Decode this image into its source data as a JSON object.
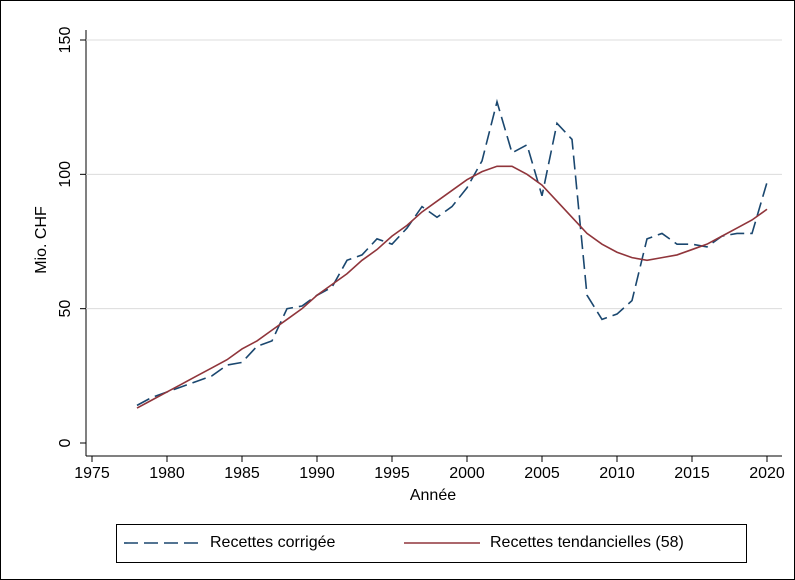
{
  "chart_data": {
    "type": "line",
    "x_label": "Année",
    "y_label": "Mio. CHF",
    "x": [
      1978,
      1979,
      1980,
      1981,
      1982,
      1983,
      1984,
      1985,
      1986,
      1987,
      1988,
      1989,
      1990,
      1991,
      1992,
      1993,
      1994,
      1995,
      1996,
      1997,
      1998,
      1999,
      2000,
      2001,
      2002,
      2003,
      2004,
      2005,
      2006,
      2007,
      2008,
      2009,
      2010,
      2011,
      2012,
      2013,
      2014,
      2015,
      2016,
      2017,
      2018,
      2019,
      2020
    ],
    "series": [
      {
        "name": "Recettes corrigée",
        "color": "#1a476f",
        "dashed": true,
        "values": [
          14,
          17,
          19,
          21,
          23,
          25,
          29,
          30,
          36,
          38,
          50,
          51,
          55,
          58,
          68,
          70,
          76,
          74,
          80,
          88,
          84,
          88,
          95,
          105,
          127,
          108,
          111,
          92,
          119,
          113,
          55,
          46,
          48,
          53,
          76,
          78,
          74,
          74,
          73,
          77,
          78,
          78,
          97
        ]
      },
      {
        "name": "Recettes tendancielles (58)",
        "color": "#90353b",
        "dashed": false,
        "values": [
          13,
          16,
          19,
          22,
          25,
          28,
          31,
          35,
          38,
          42,
          46,
          50,
          55,
          59,
          63,
          68,
          72,
          77,
          81,
          86,
          90,
          94,
          98,
          101,
          103,
          103,
          100,
          96,
          90,
          84,
          78,
          74,
          71,
          69,
          68,
          69,
          70,
          72,
          74,
          77,
          80,
          83,
          87
        ]
      }
    ],
    "xlim": [
      1975,
      2020
    ],
    "xticks": [
      1975,
      1980,
      1985,
      1990,
      1995,
      2000,
      2005,
      2010,
      2015,
      2020
    ],
    "ylim": [
      0,
      150
    ],
    "yticks": [
      0,
      50,
      100,
      150
    ],
    "grid": true,
    "legend": "bottom"
  }
}
